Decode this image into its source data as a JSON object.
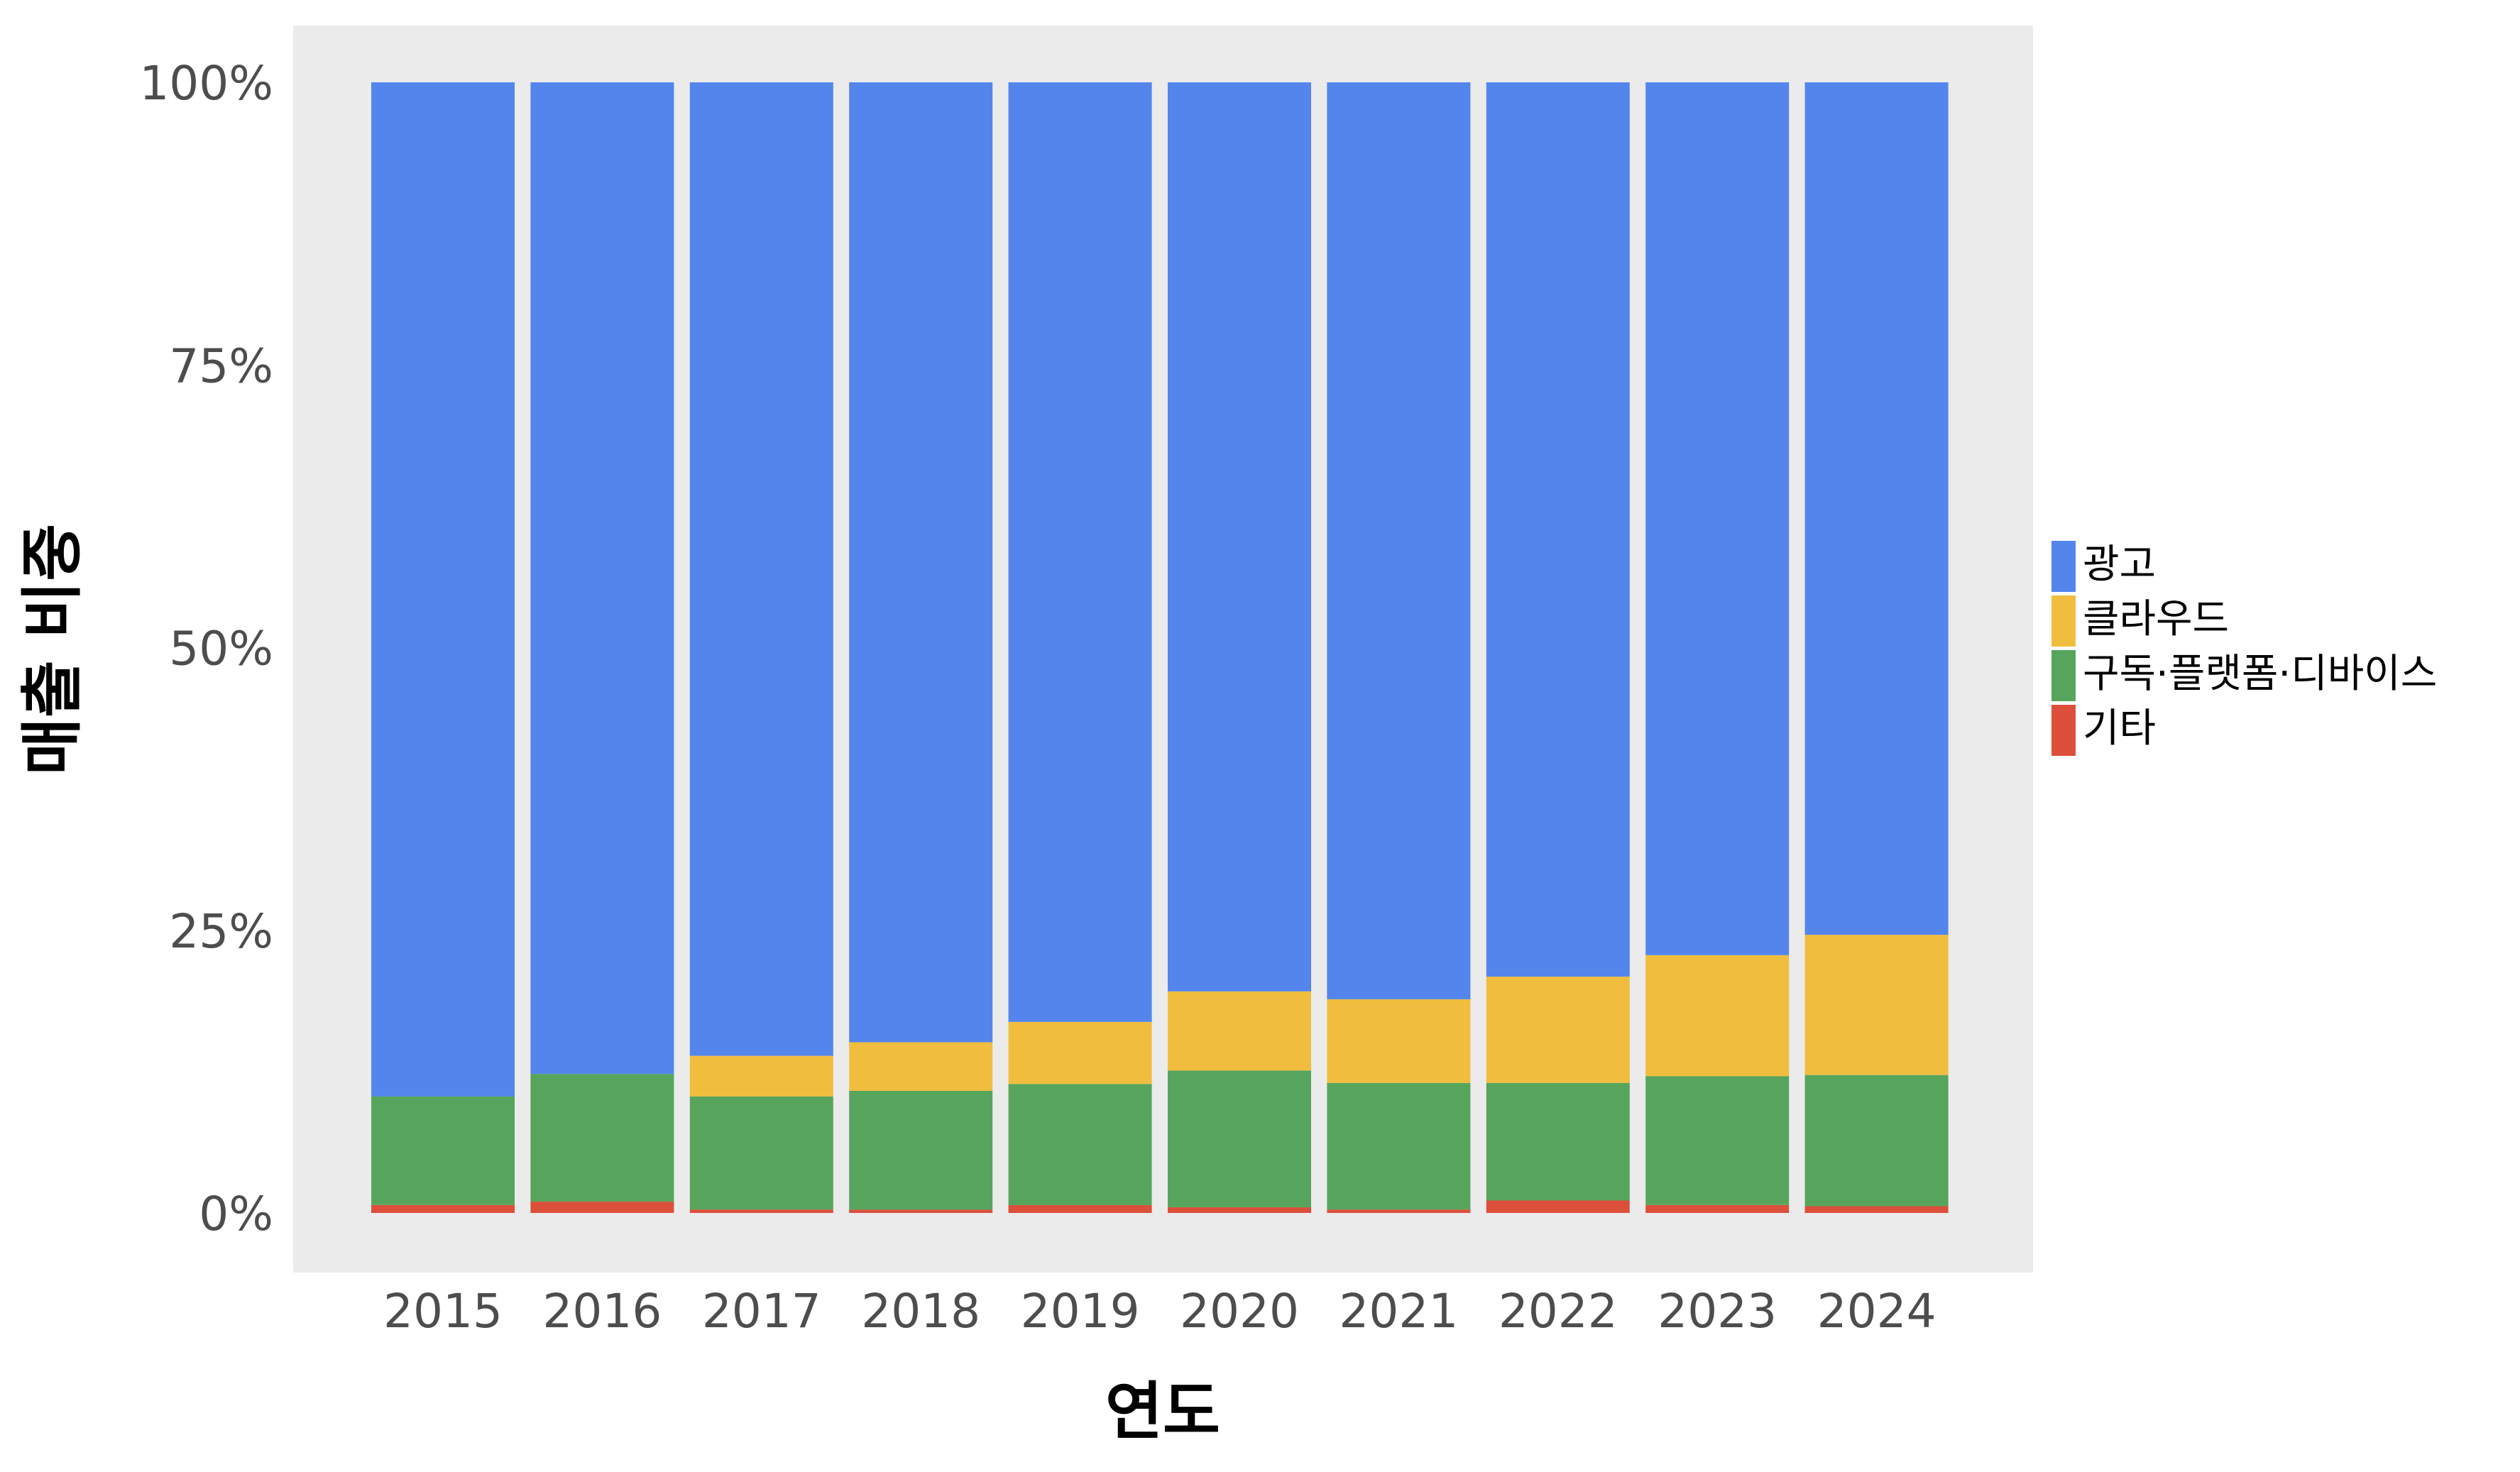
{
  "chart_data": {
    "type": "bar",
    "stacked": true,
    "percent": true,
    "title": "",
    "xlabel": "연도",
    "ylabel": "매출 비중",
    "categories": [
      "2015",
      "2016",
      "2017",
      "2018",
      "2019",
      "2020",
      "2021",
      "2022",
      "2023",
      "2024"
    ],
    "ylim": [
      0,
      1
    ],
    "yticks": [
      "0%",
      "25%",
      "50%",
      "75%",
      "100%"
    ],
    "series": [
      {
        "name": "기타",
        "color": "#DB4F3B",
        "values": [
          0.007,
          0.01,
          0.003,
          0.003,
          0.007,
          0.005,
          0.003,
          0.011,
          0.007,
          0.006
        ]
      },
      {
        "name": "구독·플랫폼·디바이스",
        "color": "#57A55C",
        "values": [
          0.096,
          0.113,
          0.1,
          0.105,
          0.107,
          0.121,
          0.112,
          0.104,
          0.114,
          0.116
        ]
      },
      {
        "name": "클라우드",
        "color": "#F0BD3E",
        "values": [
          0.0,
          0.0,
          0.036,
          0.043,
          0.055,
          0.07,
          0.074,
          0.094,
          0.107,
          0.124
        ]
      },
      {
        "name": "광고",
        "color": "#5385EC",
        "values": [
          0.897,
          0.877,
          0.861,
          0.849,
          0.831,
          0.804,
          0.811,
          0.791,
          0.772,
          0.754
        ]
      }
    ],
    "legend": {
      "position": "right",
      "order": [
        "광고",
        "클라우드",
        "구독·플랫폼·디바이스",
        "기타"
      ]
    },
    "panel_background": "#EBEBEB",
    "grid": false
  }
}
